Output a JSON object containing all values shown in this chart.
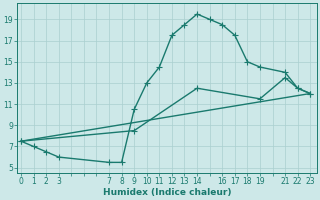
{
  "line1_x": [
    0,
    1,
    2,
    3,
    7,
    8,
    9,
    10,
    11,
    12,
    13,
    14,
    15,
    16,
    17,
    18,
    19,
    21,
    22,
    23
  ],
  "line1_y": [
    7.5,
    7.0,
    6.5,
    6.0,
    5.5,
    5.5,
    10.5,
    13.0,
    14.5,
    17.5,
    18.5,
    19.5,
    19.0,
    18.5,
    17.5,
    15.0,
    14.5,
    14.0,
    12.5,
    12.0
  ],
  "line2_x": [
    0,
    23
  ],
  "line2_y": [
    7.5,
    12.0
  ],
  "line3_x": [
    0,
    9,
    14,
    19,
    21,
    22,
    23
  ],
  "line3_y": [
    7.5,
    8.5,
    12.5,
    11.5,
    13.5,
    12.5,
    12.0
  ],
  "line_color": "#1a7a6e",
  "bg_color": "#cde8e8",
  "grid_color_major": "#aacfcf",
  "grid_color_minor": "#bddada",
  "xlabel": "Humidex (Indice chaleur)",
  "xtick_labels": [
    "0",
    "1",
    "2",
    "3",
    "",
    "",
    "",
    "7",
    "8",
    "9",
    "10",
    "11",
    "12",
    "13",
    "14",
    "",
    "16",
    "17",
    "18",
    "19",
    "",
    "21",
    "22",
    "23"
  ],
  "xtick_positions": [
    0,
    1,
    2,
    3,
    4,
    5,
    6,
    7,
    8,
    9,
    10,
    11,
    12,
    13,
    14,
    15,
    16,
    17,
    18,
    19,
    20,
    21,
    22,
    23
  ],
  "yticks": [
    5,
    7,
    9,
    11,
    13,
    15,
    17,
    19
  ],
  "xlim": [
    -0.3,
    23.5
  ],
  "ylim": [
    4.5,
    20.5
  ],
  "markersize": 4,
  "linewidth": 1.0
}
